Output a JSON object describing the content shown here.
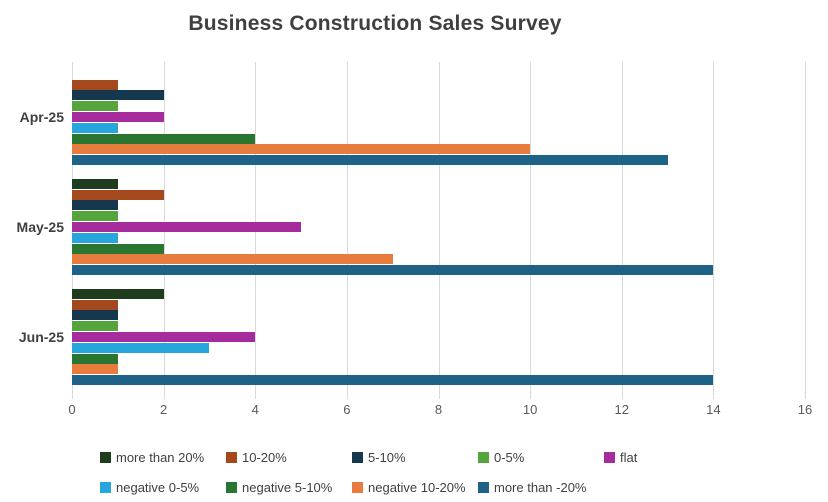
{
  "chart_data": {
    "type": "bar",
    "orientation": "horizontal",
    "title": "Business Construction Sales Survey",
    "categories": [
      "Apr-25",
      "May-25",
      "Jun-25"
    ],
    "series": [
      {
        "name": "more than 20%",
        "color": "#1f3d1e",
        "values": [
          0,
          1,
          2
        ]
      },
      {
        "name": "10-20%",
        "color": "#a3491d",
        "values": [
          1,
          2,
          1
        ]
      },
      {
        "name": "5-10%",
        "color": "#16384e",
        "values": [
          2,
          1,
          1
        ]
      },
      {
        "name": "0-5%",
        "color": "#54a53c",
        "values": [
          1,
          1,
          1
        ]
      },
      {
        "name": "flat",
        "color": "#a62c9e",
        "values": [
          2,
          5,
          4
        ]
      },
      {
        "name": "negative 0-5%",
        "color": "#27a5dd",
        "values": [
          1,
          1,
          3
        ]
      },
      {
        "name": "negative 5-10%",
        "color": "#2a7530",
        "values": [
          4,
          2,
          1
        ]
      },
      {
        "name": "negative 10-20%",
        "color": "#e87b3e",
        "values": [
          10,
          7,
          1
        ]
      },
      {
        "name": "more than -20%",
        "color": "#1f6288",
        "values": [
          13,
          14,
          14
        ]
      }
    ],
    "xlim": [
      0,
      16
    ],
    "x_ticks": [
      0,
      2,
      4,
      6,
      8,
      10,
      12,
      14,
      16
    ],
    "grid": "vertical",
    "gridline_color": "#d9d9d9",
    "title_color": "#3f3f3f",
    "category_label_color": "#404040",
    "tick_label_color": "#595959",
    "legend_position": "bottom",
    "legend_rows": 2,
    "legend_columns": 5
  }
}
